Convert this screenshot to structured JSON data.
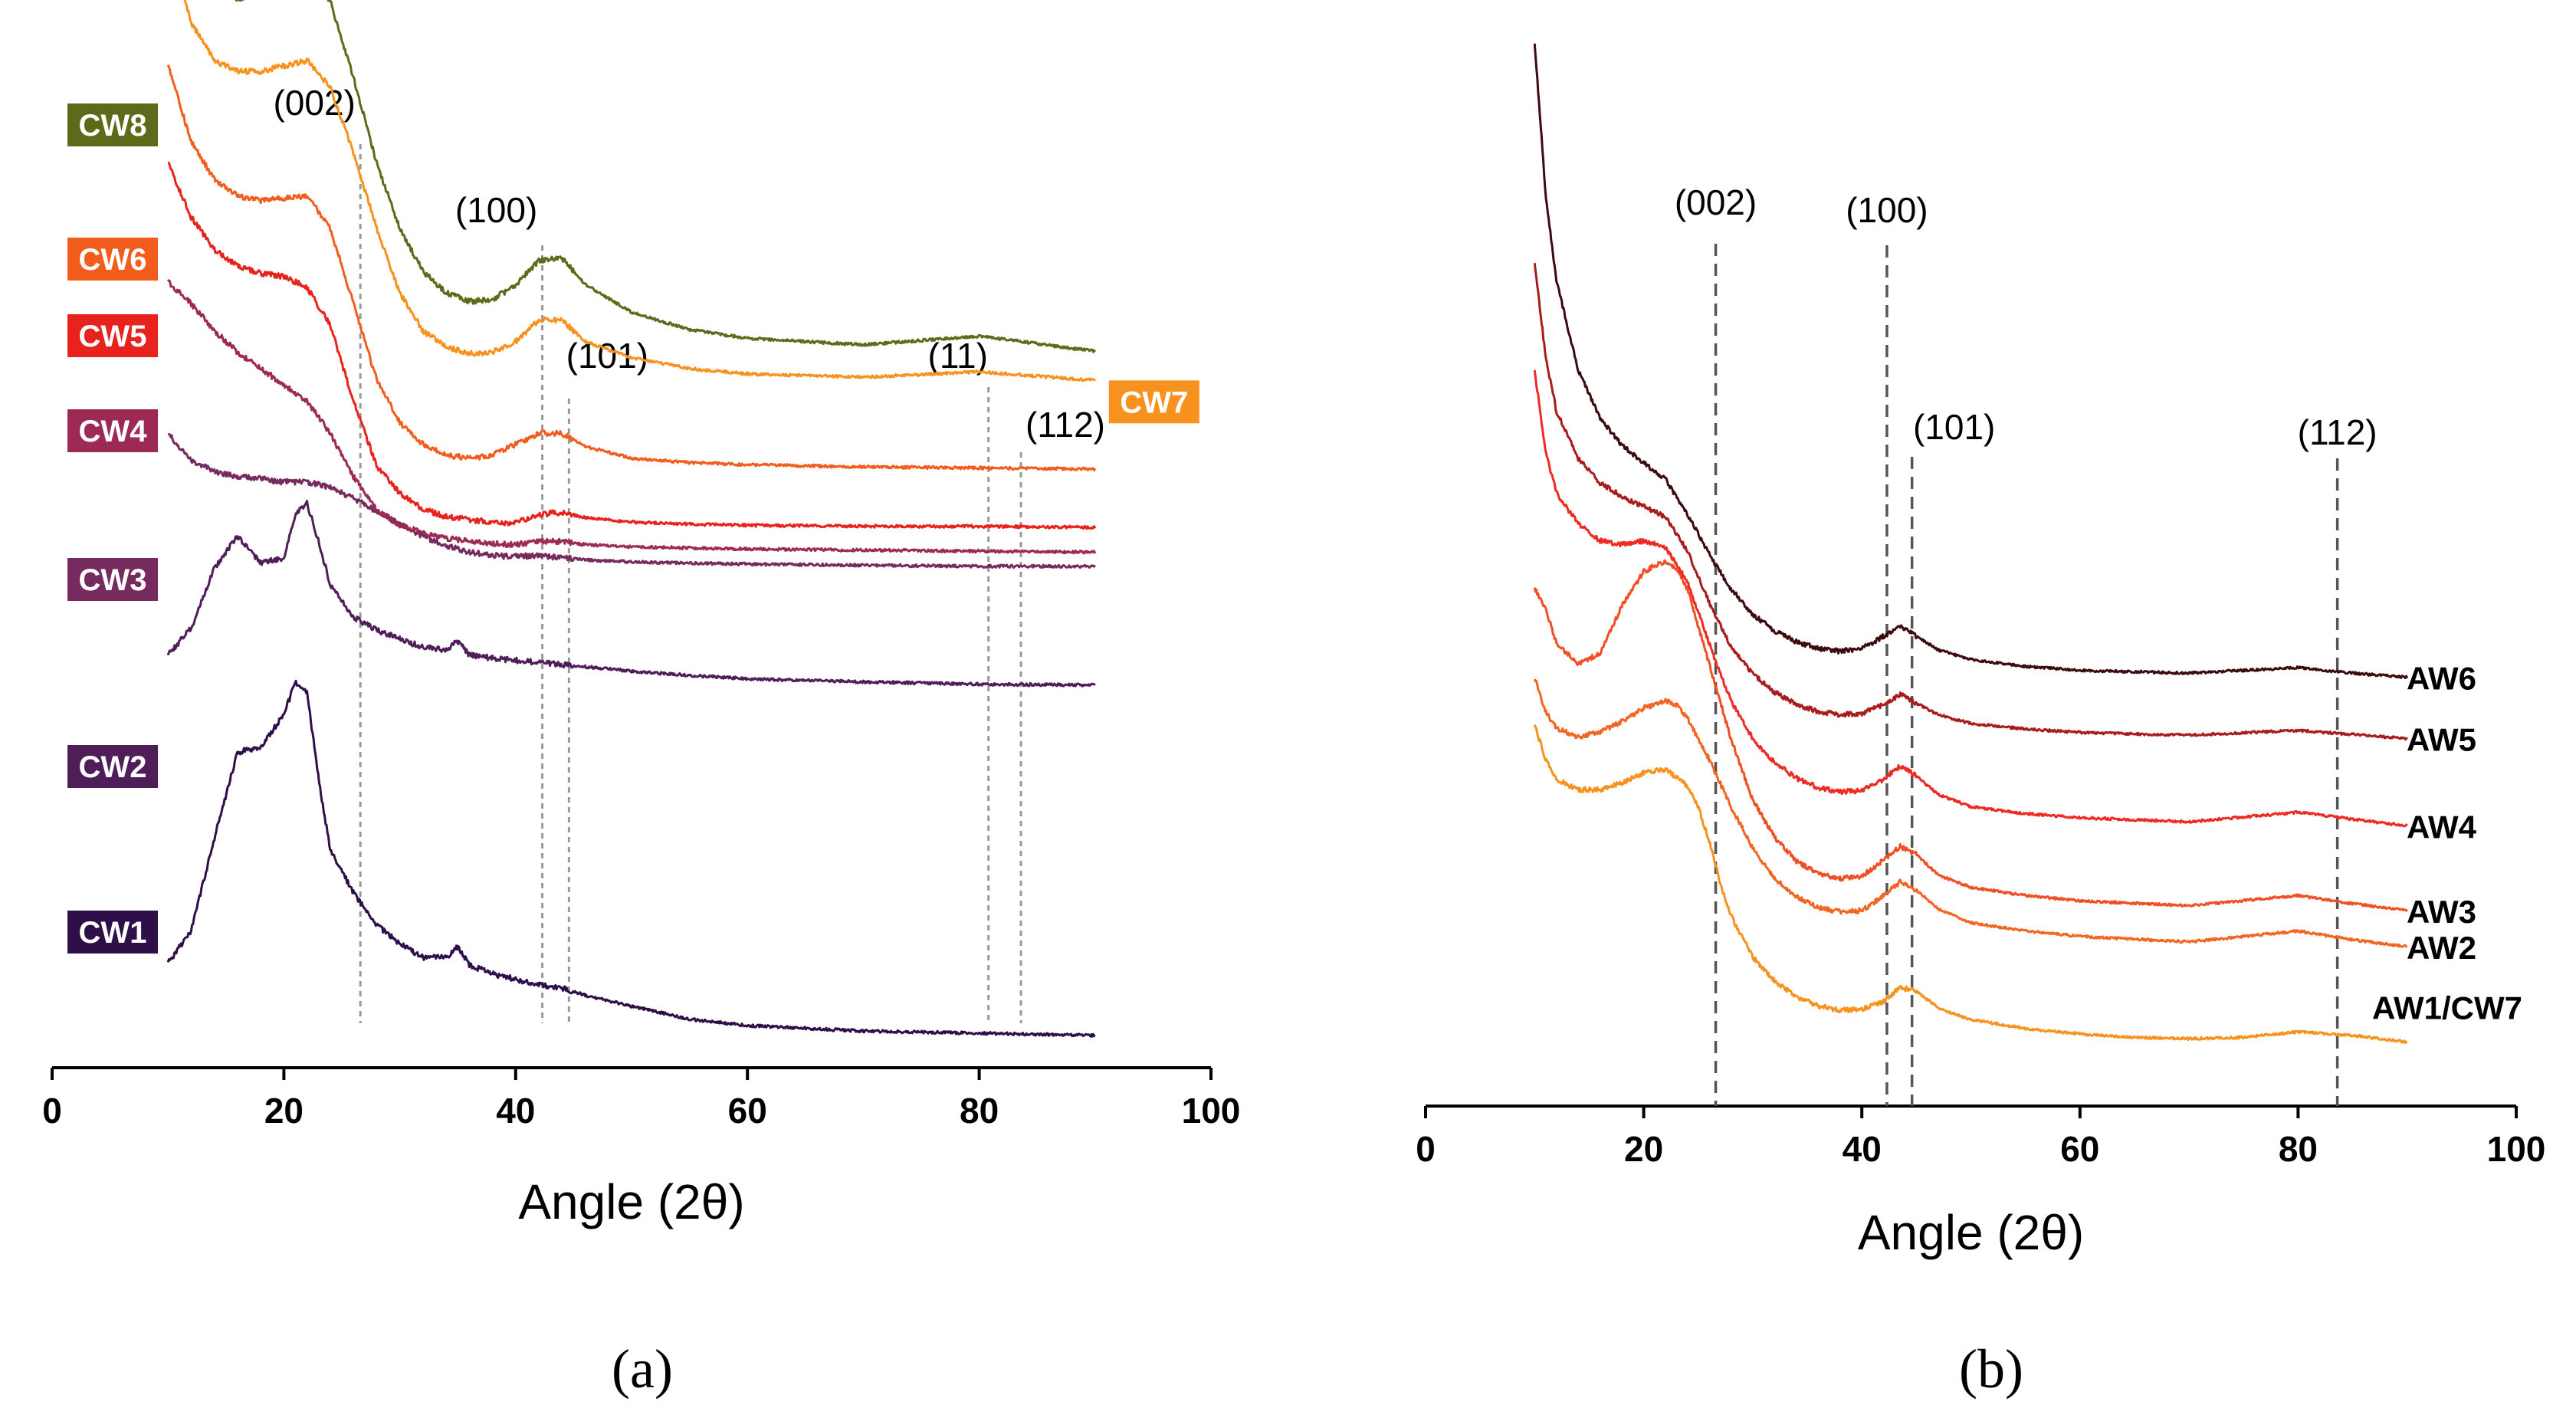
{
  "chart_data": [
    {
      "panel_label": "(a)",
      "type": "line",
      "xlabel": "Angle (2θ)",
      "xlim": [
        0,
        100
      ],
      "xticks": [
        0,
        20,
        40,
        60,
        80,
        100
      ],
      "y_axis_visible": false,
      "reference_lines": [
        {
          "label": "(002)",
          "x": 26.6
        },
        {
          "label": "(100)",
          "x": 42.3
        },
        {
          "label": "(101)",
          "x": 44.6
        },
        {
          "label": "(11)",
          "x": 80.8
        },
        {
          "label": "(112)",
          "x": 83.6
        }
      ],
      "series": [
        {
          "name": "CW1",
          "color": "#2e0f4a",
          "label_style": "box",
          "x": [
            10,
            12,
            14,
            16,
            18,
            20,
            21,
            22,
            23,
            24,
            26,
            28,
            30,
            32,
            34,
            35,
            36,
            38,
            40,
            42,
            44,
            46,
            50,
            55,
            60,
            70,
            80,
            90
          ],
          "y": [
            0.7,
            1.0,
            1.85,
            2.65,
            2.7,
            3.0,
            3.3,
            3.2,
            2.4,
            1.75,
            1.35,
            1.05,
            0.88,
            0.75,
            0.75,
            0.85,
            0.68,
            0.6,
            0.55,
            0.5,
            0.47,
            0.4,
            0.3,
            0.18,
            0.12,
            0.07,
            0.05,
            0.03
          ]
        },
        {
          "name": "CW2",
          "color": "#4f1d57",
          "label_style": "box",
          "x": [
            10,
            12,
            14,
            16,
            18,
            20,
            21,
            22,
            23,
            24,
            26,
            28,
            30,
            32,
            34,
            35,
            36,
            38,
            40,
            42,
            44,
            46,
            50,
            55,
            60,
            70,
            80,
            90
          ],
          "y": [
            3.55,
            3.8,
            4.35,
            4.65,
            4.4,
            4.45,
            4.85,
            4.95,
            4.6,
            4.2,
            3.9,
            3.78,
            3.7,
            3.62,
            3.6,
            3.68,
            3.55,
            3.52,
            3.5,
            3.48,
            3.46,
            3.44,
            3.4,
            3.36,
            3.33,
            3.3,
            3.28,
            3.27
          ]
        },
        {
          "name": "CW3",
          "color": "#762a5e",
          "label_style": "box",
          "x": [
            10,
            12,
            14,
            16,
            18,
            20,
            22,
            24,
            26,
            28,
            30,
            32,
            34,
            36,
            38,
            40,
            42,
            44,
            46,
            50,
            55,
            60,
            70,
            80,
            90
          ],
          "y": [
            5.6,
            5.35,
            5.25,
            5.2,
            5.18,
            5.15,
            5.15,
            5.1,
            5.0,
            4.88,
            4.76,
            4.65,
            4.56,
            4.5,
            4.47,
            4.46,
            4.47,
            4.45,
            4.43,
            4.41,
            4.4,
            4.39,
            4.38,
            4.37,
            4.37
          ]
        },
        {
          "name": "CW4",
          "color": "#9c2a55",
          "label_style": "box",
          "x": [
            10,
            12,
            14,
            16,
            18,
            20,
            22,
            24,
            26,
            28,
            30,
            32,
            34,
            36,
            38,
            40,
            42,
            44,
            46,
            50,
            55,
            60,
            70,
            80,
            90
          ],
          "y": [
            7.0,
            6.8,
            6.55,
            6.35,
            6.2,
            6.05,
            5.9,
            5.6,
            5.2,
            4.9,
            4.75,
            4.68,
            4.63,
            4.6,
            4.58,
            4.57,
            4.6,
            4.6,
            4.57,
            4.55,
            4.54,
            4.53,
            4.52,
            4.51,
            4.5
          ]
        },
        {
          "name": "CW5",
          "color": "#e8231d",
          "label_style": "box",
          "x": [
            10,
            12,
            14,
            16,
            18,
            20,
            22,
            24,
            26,
            28,
            30,
            32,
            34,
            36,
            38,
            40,
            42,
            44,
            46,
            50,
            55,
            60,
            70,
            80,
            90
          ],
          "y": [
            8.1,
            7.6,
            7.3,
            7.15,
            7.08,
            7.05,
            6.95,
            6.6,
            5.9,
            5.3,
            5.05,
            4.9,
            4.83,
            4.8,
            4.78,
            4.77,
            4.85,
            4.87,
            4.82,
            4.78,
            4.76,
            4.75,
            4.74,
            4.74,
            4.73
          ]
        },
        {
          "name": "CW6",
          "color": "#f25c1c",
          "label_style": "box",
          "x": [
            10,
            12,
            14,
            16,
            18,
            20,
            22,
            24,
            26,
            28,
            30,
            32,
            34,
            36,
            38,
            40,
            42,
            44,
            46,
            50,
            55,
            60,
            70,
            80,
            90
          ],
          "y": [
            9.0,
            8.3,
            7.95,
            7.8,
            7.75,
            7.78,
            7.8,
            7.5,
            6.8,
            6.1,
            5.7,
            5.5,
            5.4,
            5.37,
            5.4,
            5.5,
            5.6,
            5.6,
            5.48,
            5.37,
            5.33,
            5.31,
            5.29,
            5.28,
            5.27
          ]
        },
        {
          "name": "CW7",
          "color": "#f7921e",
          "label_style": "box",
          "x": [
            10,
            12,
            14,
            16,
            18,
            20,
            22,
            24,
            26,
            28,
            30,
            32,
            34,
            36,
            38,
            40,
            42,
            44,
            46,
            50,
            55,
            60,
            70,
            80,
            90
          ],
          "y": [
            10.2,
            9.4,
            9.05,
            8.95,
            8.95,
            9.0,
            9.05,
            8.8,
            8.2,
            7.5,
            6.9,
            6.55,
            6.4,
            6.34,
            6.35,
            6.45,
            6.65,
            6.65,
            6.45,
            6.3,
            6.2,
            6.15,
            6.12,
            6.17,
            6.09
          ]
        },
        {
          "name": "CW8",
          "color": "#5b6b1a",
          "label_style": "box",
          "x": [
            10,
            12,
            14,
            16,
            18,
            20,
            22,
            24,
            26,
            28,
            30,
            32,
            34,
            36,
            38,
            40,
            42,
            44,
            46,
            50,
            55,
            60,
            70,
            80,
            90
          ],
          "y": [
            10.9,
            10.15,
            9.75,
            9.62,
            9.68,
            9.85,
            9.95,
            9.6,
            8.9,
            8.1,
            7.5,
            7.1,
            6.9,
            6.82,
            6.84,
            6.97,
            7.2,
            7.22,
            6.98,
            6.72,
            6.56,
            6.48,
            6.42,
            6.5,
            6.36
          ]
        }
      ]
    },
    {
      "panel_label": "(b)",
      "type": "line",
      "xlabel": "Angle (2θ)",
      "xlim": [
        0,
        100
      ],
      "xticks": [
        0,
        20,
        40,
        60,
        80,
        100
      ],
      "y_axis_visible": false,
      "reference_lines": [
        {
          "label": "(002)",
          "x": 26.6
        },
        {
          "label": "(100)",
          "x": 42.3
        },
        {
          "label": "(101)",
          "x": 44.6
        },
        {
          "label": "(112)",
          "x": 83.6
        }
      ],
      "series": [
        {
          "name": "AW1/CW7",
          "color": "#f7921e",
          "label_style": "plain",
          "x": [
            10,
            11,
            12,
            14,
            16,
            18,
            20,
            22,
            24,
            25,
            26,
            27,
            28,
            30,
            32,
            34,
            36,
            38,
            40,
            42,
            43.5,
            45,
            47,
            50,
            55,
            60,
            65,
            70,
            75,
            80,
            85,
            90
          ],
          "y": [
            4.8,
            4.3,
            4.0,
            3.85,
            3.85,
            3.95,
            4.1,
            4.15,
            3.9,
            3.6,
            3.1,
            2.5,
            2.0,
            1.4,
            1.05,
            0.82,
            0.68,
            0.62,
            0.63,
            0.75,
            0.95,
            0.9,
            0.65,
            0.48,
            0.35,
            0.27,
            0.22,
            0.2,
            0.22,
            0.3,
            0.25,
            0.15
          ]
        },
        {
          "name": "AW2",
          "color": "#f26522",
          "label_style": "plain",
          "x": [
            10,
            11,
            12,
            14,
            16,
            18,
            20,
            22,
            23,
            24,
            26,
            28,
            30,
            32,
            34,
            36,
            38,
            40,
            42,
            43.5,
            45,
            47,
            50,
            55,
            60,
            70,
            80,
            85,
            90
          ],
          "y": [
            5.5,
            5.0,
            4.75,
            4.62,
            4.7,
            4.85,
            5.05,
            5.15,
            5.1,
            4.9,
            4.3,
            3.6,
            3.0,
            2.55,
            2.28,
            2.12,
            2.06,
            2.08,
            2.3,
            2.5,
            2.38,
            2.1,
            1.9,
            1.78,
            1.7,
            1.62,
            1.78,
            1.65,
            1.55
          ]
        },
        {
          "name": "AW3",
          "color": "#f04e23",
          "label_style": "plain",
          "x": [
            10,
            11,
            12,
            14,
            16,
            18,
            20,
            22,
            23,
            24,
            26,
            28,
            30,
            32,
            34,
            36,
            38,
            40,
            42,
            43.5,
            45,
            47,
            50,
            55,
            60,
            70,
            80,
            85,
            90
          ],
          "y": [
            6.8,
            6.5,
            6.0,
            5.7,
            5.85,
            6.55,
            7.05,
            7.2,
            7.1,
            6.8,
            5.7,
            4.6,
            3.7,
            3.15,
            2.8,
            2.62,
            2.55,
            2.58,
            2.82,
            3.02,
            2.9,
            2.6,
            2.42,
            2.3,
            2.22,
            2.15,
            2.3,
            2.18,
            2.08
          ]
        },
        {
          "name": "AW4",
          "color": "#ee2a24",
          "label_style": "plain",
          "x": [
            10,
            11,
            12,
            14,
            16,
            18,
            20,
            22,
            24,
            26,
            28,
            30,
            32,
            34,
            36,
            38,
            40,
            42,
            43.5,
            45,
            47,
            50,
            55,
            60,
            70,
            80,
            85,
            90
          ],
          "y": [
            10.0,
            8.8,
            8.2,
            7.75,
            7.5,
            7.45,
            7.5,
            7.4,
            6.9,
            6.0,
            5.15,
            4.6,
            4.25,
            4.02,
            3.88,
            3.82,
            3.84,
            4.0,
            4.2,
            4.05,
            3.78,
            3.6,
            3.5,
            3.44,
            3.38,
            3.52,
            3.42,
            3.32
          ]
        },
        {
          "name": "AW5",
          "color": "#a81c1c",
          "label_style": "plain",
          "x": [
            10,
            11,
            12,
            14,
            16,
            18,
            20,
            22,
            24,
            26,
            28,
            30,
            32,
            34,
            36,
            38,
            40,
            42,
            43.5,
            45,
            47,
            50,
            55,
            60,
            70,
            80,
            85,
            90
          ],
          "y": [
            11.6,
            10.2,
            9.4,
            8.7,
            8.35,
            8.15,
            8.0,
            7.85,
            7.35,
            6.6,
            5.95,
            5.55,
            5.28,
            5.1,
            5.0,
            4.95,
            4.97,
            5.1,
            5.25,
            5.12,
            4.95,
            4.82,
            4.74,
            4.69,
            4.65,
            4.72,
            4.66,
            4.6
          ]
        },
        {
          "name": "AW6",
          "color": "#3d0b0e",
          "label_style": "plain",
          "x": [
            10,
            11,
            12,
            14,
            16,
            18,
            20,
            22,
            24,
            26,
            28,
            30,
            32,
            34,
            36,
            38,
            40,
            42,
            43.5,
            45,
            47,
            50,
            55,
            60,
            70,
            80,
            85,
            90
          ],
          "y": [
            14.8,
            12.6,
            11.3,
            10.0,
            9.3,
            8.9,
            8.65,
            8.4,
            7.9,
            7.3,
            6.8,
            6.42,
            6.18,
            6.02,
            5.92,
            5.88,
            5.92,
            6.1,
            6.25,
            6.1,
            5.9,
            5.76,
            5.66,
            5.6,
            5.56,
            5.64,
            5.56,
            5.5
          ]
        }
      ]
    }
  ]
}
